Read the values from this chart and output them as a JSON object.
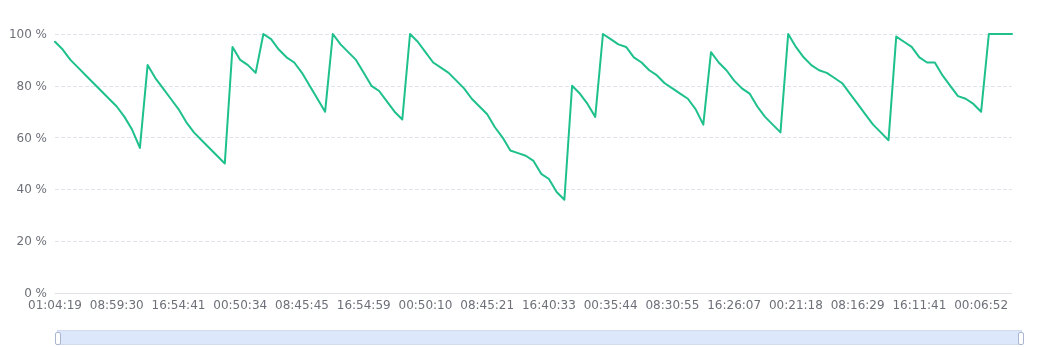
{
  "chart_data": {
    "type": "line",
    "categories": [
      "01:04:19",
      null,
      null,
      null,
      null,
      null,
      null,
      null,
      "08:59:30",
      null,
      null,
      null,
      null,
      null,
      null,
      null,
      "16:54:41",
      null,
      null,
      null,
      null,
      null,
      null,
      null,
      "00:50:34",
      null,
      null,
      null,
      null,
      null,
      null,
      null,
      "08:45:45",
      null,
      null,
      null,
      null,
      null,
      null,
      null,
      "16:54:59",
      null,
      null,
      null,
      null,
      null,
      null,
      null,
      "00:50:10",
      null,
      null,
      null,
      null,
      null,
      null,
      null,
      "08:45:21",
      null,
      null,
      null,
      null,
      null,
      null,
      null,
      "16:40:33",
      null,
      null,
      null,
      null,
      null,
      null,
      null,
      "00:35:44",
      null,
      null,
      null,
      null,
      null,
      null,
      null,
      "08:30:55",
      null,
      null,
      null,
      null,
      null,
      null,
      null,
      "16:26:07",
      null,
      null,
      null,
      null,
      null,
      null,
      null,
      "00:21:18",
      null,
      null,
      null,
      null,
      null,
      null,
      null,
      "08:16:29",
      null,
      null,
      null,
      null,
      null,
      null,
      null,
      "16:11:41",
      null,
      null,
      null,
      null,
      null,
      null,
      null,
      "00:06:52",
      null,
      null,
      null,
      null
    ],
    "series": [
      {
        "color": "#1ec08c",
        "values": [
          97,
          94,
          90,
          87,
          84,
          81,
          78,
          75,
          72,
          68,
          63,
          56,
          88,
          83,
          79,
          75,
          71,
          66,
          62,
          59,
          56,
          53,
          50,
          95,
          90,
          88,
          85,
          100,
          98,
          94,
          91,
          89,
          85,
          80,
          75,
          70,
          100,
          96,
          93,
          90,
          85,
          80,
          78,
          74,
          70,
          67,
          100,
          97,
          93,
          89,
          87,
          85,
          82,
          79,
          75,
          72,
          69,
          64,
          60,
          55,
          54,
          53,
          51,
          46,
          44,
          39,
          36,
          80,
          77,
          73,
          68,
          100,
          98,
          96,
          95,
          91,
          89,
          86,
          84,
          81,
          79,
          77,
          75,
          71,
          65,
          93,
          89,
          86,
          82,
          79,
          77,
          72,
          68,
          65,
          62,
          100,
          95,
          91,
          88,
          86,
          85,
          83,
          81,
          77,
          73,
          69,
          65,
          62,
          59,
          99,
          97,
          95,
          91,
          89,
          89,
          84,
          80,
          76,
          75,
          73,
          70,
          100,
          100,
          100,
          100
        ]
      }
    ],
    "ylim": [
      0,
      100
    ],
    "yticks": [
      {
        "value": 0,
        "label": "0 %"
      },
      {
        "value": 20,
        "label": "20 %"
      },
      {
        "value": 40,
        "label": "40 %"
      },
      {
        "value": 60,
        "label": "60 %"
      },
      {
        "value": 80,
        "label": "80 %"
      },
      {
        "value": 100,
        "label": "100 %"
      }
    ],
    "grid": "y",
    "marker": "none",
    "line_style": "solid"
  }
}
